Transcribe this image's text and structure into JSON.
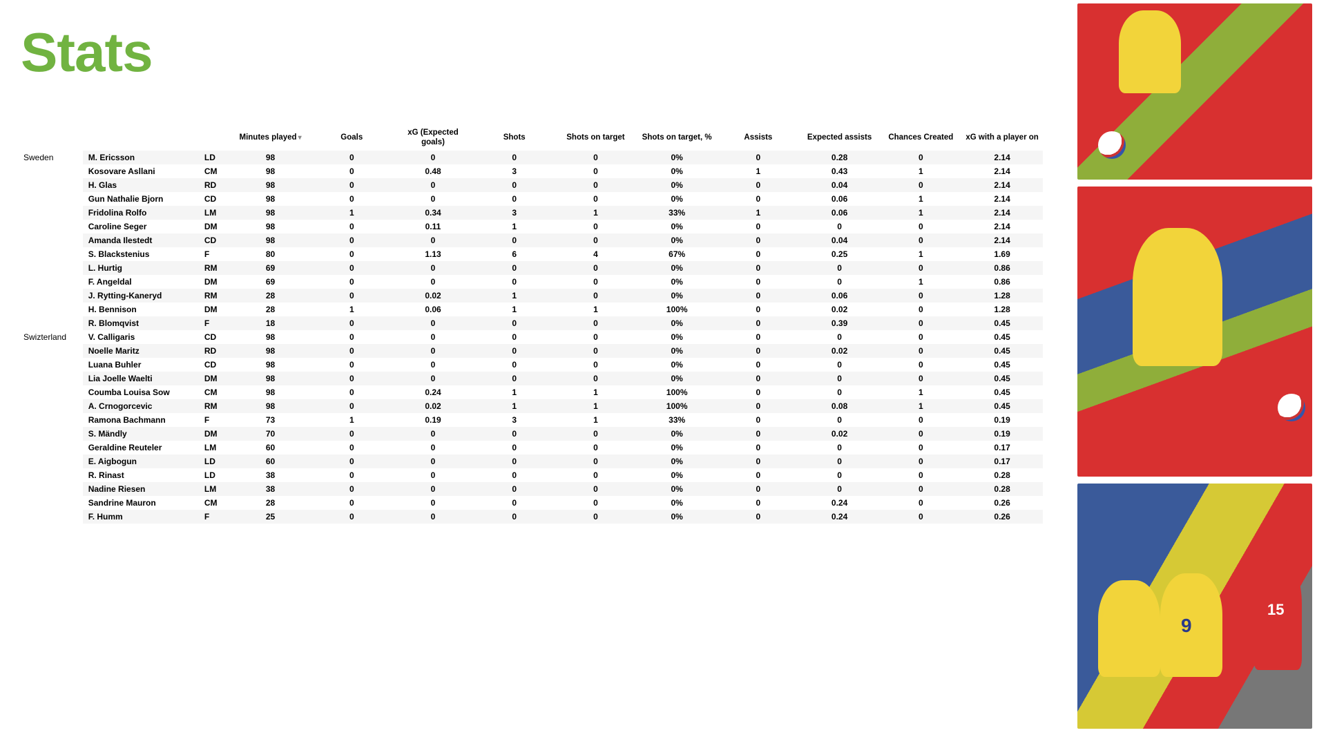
{
  "title": "Stats",
  "columns": [
    {
      "key": "minutes",
      "label": "Minutes played",
      "sorted": true
    },
    {
      "key": "goals",
      "label": "Goals"
    },
    {
      "key": "xg",
      "label": "xG (Expected goals)"
    },
    {
      "key": "shots",
      "label": "Shots"
    },
    {
      "key": "sot",
      "label": "Shots on target"
    },
    {
      "key": "sotp",
      "label": "Shots on target, %"
    },
    {
      "key": "assists",
      "label": "Assists"
    },
    {
      "key": "xa",
      "label": "Expected assists"
    },
    {
      "key": "cc",
      "label": "Chances Created"
    },
    {
      "key": "xgon",
      "label": "xG with a player on"
    }
  ],
  "teams": [
    {
      "name": "Sweden",
      "players": [
        {
          "name": "M. Ericsson",
          "pos": "LD",
          "minutes": "98",
          "goals": "0",
          "xg": "0",
          "shots": "0",
          "sot": "0",
          "sotp": "0%",
          "assists": "0",
          "xa": "0.28",
          "cc": "0",
          "xgon": "2.14"
        },
        {
          "name": "Kosovare Asllani",
          "pos": "CM",
          "minutes": "98",
          "goals": "0",
          "xg": "0.48",
          "shots": "3",
          "sot": "0",
          "sotp": "0%",
          "assists": "1",
          "xa": "0.43",
          "cc": "1",
          "xgon": "2.14"
        },
        {
          "name": "H. Glas",
          "pos": "RD",
          "minutes": "98",
          "goals": "0",
          "xg": "0",
          "shots": "0",
          "sot": "0",
          "sotp": "0%",
          "assists": "0",
          "xa": "0.04",
          "cc": "0",
          "xgon": "2.14"
        },
        {
          "name": "Gun Nathalie Bjorn",
          "pos": "CD",
          "minutes": "98",
          "goals": "0",
          "xg": "0",
          "shots": "0",
          "sot": "0",
          "sotp": "0%",
          "assists": "0",
          "xa": "0.06",
          "cc": "1",
          "xgon": "2.14"
        },
        {
          "name": "Fridolina Rolfo",
          "pos": "LM",
          "minutes": "98",
          "goals": "1",
          "xg": "0.34",
          "shots": "3",
          "sot": "1",
          "sotp": "33%",
          "assists": "1",
          "xa": "0.06",
          "cc": "1",
          "xgon": "2.14"
        },
        {
          "name": "Caroline Seger",
          "pos": "DM",
          "minutes": "98",
          "goals": "0",
          "xg": "0.11",
          "shots": "1",
          "sot": "0",
          "sotp": "0%",
          "assists": "0",
          "xa": "0",
          "cc": "0",
          "xgon": "2.14"
        },
        {
          "name": "Amanda Ilestedt",
          "pos": "CD",
          "minutes": "98",
          "goals": "0",
          "xg": "0",
          "shots": "0",
          "sot": "0",
          "sotp": "0%",
          "assists": "0",
          "xa": "0.04",
          "cc": "0",
          "xgon": "2.14"
        },
        {
          "name": "S. Blackstenius",
          "pos": "F",
          "minutes": "80",
          "goals": "0",
          "xg": "1.13",
          "shots": "6",
          "sot": "4",
          "sotp": "67%",
          "assists": "0",
          "xa": "0.25",
          "cc": "1",
          "xgon": "1.69"
        },
        {
          "name": "L. Hurtig",
          "pos": "RM",
          "minutes": "69",
          "goals": "0",
          "xg": "0",
          "shots": "0",
          "sot": "0",
          "sotp": "0%",
          "assists": "0",
          "xa": "0",
          "cc": "0",
          "xgon": "0.86"
        },
        {
          "name": "F. Angeldal",
          "pos": "DM",
          "minutes": "69",
          "goals": "0",
          "xg": "0",
          "shots": "0",
          "sot": "0",
          "sotp": "0%",
          "assists": "0",
          "xa": "0",
          "cc": "1",
          "xgon": "0.86"
        },
        {
          "name": "J. Rytting-Kaneryd",
          "pos": "RM",
          "minutes": "28",
          "goals": "0",
          "xg": "0.02",
          "shots": "1",
          "sot": "0",
          "sotp": "0%",
          "assists": "0",
          "xa": "0.06",
          "cc": "0",
          "xgon": "1.28"
        },
        {
          "name": "H. Bennison",
          "pos": "DM",
          "minutes": "28",
          "goals": "1",
          "xg": "0.06",
          "shots": "1",
          "sot": "1",
          "sotp": "100%",
          "assists": "0",
          "xa": "0.02",
          "cc": "0",
          "xgon": "1.28"
        },
        {
          "name": "R. Blomqvist",
          "pos": "F",
          "minutes": "18",
          "goals": "0",
          "xg": "0",
          "shots": "0",
          "sot": "0",
          "sotp": "0%",
          "assists": "0",
          "xa": "0.39",
          "cc": "0",
          "xgon": "0.45"
        }
      ]
    },
    {
      "name": "Swizterland",
      "players": [
        {
          "name": "V. Calligaris",
          "pos": "CD",
          "minutes": "98",
          "goals": "0",
          "xg": "0",
          "shots": "0",
          "sot": "0",
          "sotp": "0%",
          "assists": "0",
          "xa": "0",
          "cc": "0",
          "xgon": "0.45"
        },
        {
          "name": "Noelle Maritz",
          "pos": "RD",
          "minutes": "98",
          "goals": "0",
          "xg": "0",
          "shots": "0",
          "sot": "0",
          "sotp": "0%",
          "assists": "0",
          "xa": "0.02",
          "cc": "0",
          "xgon": "0.45"
        },
        {
          "name": "Luana Buhler",
          "pos": "CD",
          "minutes": "98",
          "goals": "0",
          "xg": "0",
          "shots": "0",
          "sot": "0",
          "sotp": "0%",
          "assists": "0",
          "xa": "0",
          "cc": "0",
          "xgon": "0.45"
        },
        {
          "name": "Lia Joelle Waelti",
          "pos": "DM",
          "minutes": "98",
          "goals": "0",
          "xg": "0",
          "shots": "0",
          "sot": "0",
          "sotp": "0%",
          "assists": "0",
          "xa": "0",
          "cc": "0",
          "xgon": "0.45"
        },
        {
          "name": "Coumba Louisa Sow",
          "pos": "CM",
          "minutes": "98",
          "goals": "0",
          "xg": "0.24",
          "shots": "1",
          "sot": "1",
          "sotp": "100%",
          "assists": "0",
          "xa": "0",
          "cc": "1",
          "xgon": "0.45"
        },
        {
          "name": "A. Crnogorcevic",
          "pos": "RM",
          "minutes": "98",
          "goals": "0",
          "xg": "0.02",
          "shots": "1",
          "sot": "1",
          "sotp": "100%",
          "assists": "0",
          "xa": "0.08",
          "cc": "1",
          "xgon": "0.45"
        },
        {
          "name": "Ramona Bachmann",
          "pos": "F",
          "minutes": "73",
          "goals": "1",
          "xg": "0.19",
          "shots": "3",
          "sot": "1",
          "sotp": "33%",
          "assists": "0",
          "xa": "0",
          "cc": "0",
          "xgon": "0.19"
        },
        {
          "name": "S. Mändly",
          "pos": "DM",
          "minutes": "70",
          "goals": "0",
          "xg": "0",
          "shots": "0",
          "sot": "0",
          "sotp": "0%",
          "assists": "0",
          "xa": "0.02",
          "cc": "0",
          "xgon": "0.19"
        },
        {
          "name": "Geraldine Reuteler",
          "pos": "LM",
          "minutes": "60",
          "goals": "0",
          "xg": "0",
          "shots": "0",
          "sot": "0",
          "sotp": "0%",
          "assists": "0",
          "xa": "0",
          "cc": "0",
          "xgon": "0.17"
        },
        {
          "name": "E. Aigbogun",
          "pos": "LD",
          "minutes": "60",
          "goals": "0",
          "xg": "0",
          "shots": "0",
          "sot": "0",
          "sotp": "0%",
          "assists": "0",
          "xa": "0",
          "cc": "0",
          "xgon": "0.17"
        },
        {
          "name": "R. Rinast",
          "pos": "LD",
          "minutes": "38",
          "goals": "0",
          "xg": "0",
          "shots": "0",
          "sot": "0",
          "sotp": "0%",
          "assists": "0",
          "xa": "0",
          "cc": "0",
          "xgon": "0.28"
        },
        {
          "name": "Nadine Riesen",
          "pos": "LM",
          "minutes": "38",
          "goals": "0",
          "xg": "0",
          "shots": "0",
          "sot": "0",
          "sotp": "0%",
          "assists": "0",
          "xa": "0",
          "cc": "0",
          "xgon": "0.28"
        },
        {
          "name": "Sandrine Mauron",
          "pos": "CM",
          "minutes": "28",
          "goals": "0",
          "xg": "0",
          "shots": "0",
          "sot": "0",
          "sotp": "0%",
          "assists": "0",
          "xa": "0.24",
          "cc": "0",
          "xgon": "0.26"
        },
        {
          "name": "F. Humm",
          "pos": "F",
          "minutes": "25",
          "goals": "0",
          "xg": "0",
          "shots": "0",
          "sot": "0",
          "sotp": "0%",
          "assists": "0",
          "xa": "0.24",
          "cc": "0",
          "xgon": "0.26"
        }
      ]
    }
  ],
  "colors": {
    "title": "#71b341",
    "row_alt": "#f5f5f5",
    "bg": "#ffffff"
  }
}
